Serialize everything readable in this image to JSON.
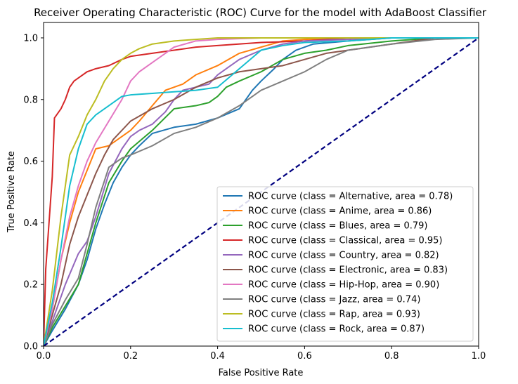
{
  "chart_data": {
    "type": "line",
    "title": "Receiver Operating Characteristic (ROC) Curve for the model with AdaBoost Classifier",
    "xlabel": "False Positive Rate",
    "ylabel": "True Positive Rate",
    "xlim": [
      0.0,
      1.0
    ],
    "ylim": [
      0.0,
      1.05
    ],
    "xticks": [
      "0.0",
      "0.2",
      "0.4",
      "0.6",
      "0.8",
      "1.0"
    ],
    "yticks": [
      "0.0",
      "0.2",
      "0.4",
      "0.6",
      "0.8",
      "1.0"
    ],
    "grid": false,
    "legend_position": "lower-right",
    "diagonal": {
      "x": [
        0,
        1
      ],
      "y": [
        0,
        1
      ],
      "color": "#000080",
      "style": "dashed"
    },
    "series": [
      {
        "name": "ROC curve (class = Alternative, area = 0.78)",
        "color": "#1f77b4",
        "x": [
          0,
          0.02,
          0.05,
          0.08,
          0.1,
          0.12,
          0.14,
          0.16,
          0.18,
          0.2,
          0.22,
          0.25,
          0.3,
          0.35,
          0.4,
          0.45,
          0.48,
          0.5,
          0.53,
          0.55,
          0.58,
          0.62,
          0.7,
          0.8,
          0.9,
          1.0
        ],
        "y": [
          0,
          0.05,
          0.12,
          0.2,
          0.28,
          0.38,
          0.46,
          0.53,
          0.58,
          0.62,
          0.65,
          0.69,
          0.71,
          0.72,
          0.74,
          0.77,
          0.83,
          0.86,
          0.9,
          0.93,
          0.96,
          0.98,
          0.99,
          1.0,
          1.0,
          1.0
        ]
      },
      {
        "name": "ROC curve (class = Anime, area = 0.86)",
        "color": "#ff7f0e",
        "x": [
          0,
          0.02,
          0.04,
          0.06,
          0.08,
          0.1,
          0.12,
          0.15,
          0.18,
          0.2,
          0.22,
          0.25,
          0.28,
          0.3,
          0.32,
          0.35,
          0.4,
          0.45,
          0.5,
          0.55,
          0.6,
          0.7,
          0.8,
          0.9,
          1.0
        ],
        "y": [
          0,
          0.12,
          0.28,
          0.4,
          0.5,
          0.57,
          0.64,
          0.65,
          0.68,
          0.7,
          0.73,
          0.78,
          0.83,
          0.84,
          0.85,
          0.88,
          0.91,
          0.95,
          0.97,
          0.99,
          0.995,
          1.0,
          1.0,
          1.0,
          1.0
        ]
      },
      {
        "name": "ROC curve (class = Blues, area = 0.79)",
        "color": "#2ca02c",
        "x": [
          0,
          0.02,
          0.05,
          0.08,
          0.1,
          0.12,
          0.15,
          0.18,
          0.2,
          0.25,
          0.3,
          0.35,
          0.38,
          0.4,
          0.42,
          0.45,
          0.5,
          0.55,
          0.6,
          0.65,
          0.7,
          0.8,
          0.9,
          1.0
        ],
        "y": [
          0,
          0.06,
          0.13,
          0.2,
          0.3,
          0.4,
          0.53,
          0.6,
          0.64,
          0.7,
          0.77,
          0.78,
          0.79,
          0.81,
          0.84,
          0.86,
          0.89,
          0.93,
          0.95,
          0.96,
          0.975,
          0.99,
          1.0,
          1.0
        ]
      },
      {
        "name": "ROC curve (class = Classical, area = 0.95)",
        "color": "#d62728",
        "x": [
          0,
          0.005,
          0.01,
          0.02,
          0.025,
          0.03,
          0.04,
          0.05,
          0.06,
          0.07,
          0.08,
          0.1,
          0.12,
          0.15,
          0.18,
          0.2,
          0.25,
          0.3,
          0.35,
          0.4,
          0.5,
          0.6,
          0.7,
          0.8,
          0.9,
          1.0
        ],
        "y": [
          0,
          0.25,
          0.35,
          0.55,
          0.74,
          0.75,
          0.77,
          0.8,
          0.84,
          0.86,
          0.87,
          0.89,
          0.9,
          0.91,
          0.93,
          0.94,
          0.95,
          0.96,
          0.97,
          0.975,
          0.985,
          0.99,
          1.0,
          1.0,
          1.0,
          1.0
        ]
      },
      {
        "name": "ROC curve (class = Country, area = 0.82)",
        "color": "#9467bd",
        "x": [
          0,
          0.02,
          0.05,
          0.08,
          0.1,
          0.12,
          0.15,
          0.18,
          0.2,
          0.22,
          0.25,
          0.28,
          0.3,
          0.32,
          0.35,
          0.38,
          0.4,
          0.42,
          0.45,
          0.5,
          0.55,
          0.6,
          0.7,
          0.8,
          0.9,
          1.0
        ],
        "y": [
          0,
          0.08,
          0.2,
          0.3,
          0.34,
          0.42,
          0.56,
          0.64,
          0.68,
          0.7,
          0.72,
          0.76,
          0.8,
          0.83,
          0.84,
          0.85,
          0.88,
          0.9,
          0.93,
          0.96,
          0.98,
          0.99,
          0.995,
          1.0,
          1.0,
          1.0
        ]
      },
      {
        "name": "ROC curve (class = Electronic, area = 0.83)",
        "color": "#8c564b",
        "x": [
          0,
          0.02,
          0.04,
          0.06,
          0.08,
          0.1,
          0.12,
          0.14,
          0.16,
          0.2,
          0.25,
          0.3,
          0.35,
          0.4,
          0.45,
          0.5,
          0.55,
          0.6,
          0.65,
          0.7,
          0.8,
          0.9,
          1.0
        ],
        "y": [
          0,
          0.1,
          0.2,
          0.33,
          0.42,
          0.49,
          0.56,
          0.62,
          0.67,
          0.73,
          0.77,
          0.8,
          0.84,
          0.87,
          0.89,
          0.9,
          0.91,
          0.93,
          0.95,
          0.96,
          0.98,
          1.0,
          1.0
        ]
      },
      {
        "name": "ROC curve (class = Hip-Hop, area = 0.90)",
        "color": "#e377c2",
        "x": [
          0,
          0.02,
          0.04,
          0.06,
          0.08,
          0.1,
          0.12,
          0.15,
          0.18,
          0.2,
          0.22,
          0.25,
          0.28,
          0.3,
          0.35,
          0.4,
          0.5,
          0.6,
          0.7,
          0.8,
          0.9,
          1.0
        ],
        "y": [
          0,
          0.12,
          0.28,
          0.42,
          0.52,
          0.6,
          0.66,
          0.73,
          0.8,
          0.86,
          0.89,
          0.92,
          0.95,
          0.97,
          0.99,
          0.995,
          1.0,
          1.0,
          1.0,
          1.0,
          1.0,
          1.0
        ]
      },
      {
        "name": "ROC curve (class = Jazz, area = 0.74)",
        "color": "#7f7f7f",
        "x": [
          0,
          0.02,
          0.05,
          0.08,
          0.1,
          0.12,
          0.15,
          0.18,
          0.2,
          0.25,
          0.3,
          0.35,
          0.4,
          0.45,
          0.5,
          0.55,
          0.6,
          0.65,
          0.7,
          0.75,
          0.8,
          0.9,
          1.0
        ],
        "y": [
          0,
          0.07,
          0.15,
          0.22,
          0.33,
          0.45,
          0.58,
          0.61,
          0.62,
          0.65,
          0.69,
          0.71,
          0.74,
          0.78,
          0.83,
          0.86,
          0.89,
          0.93,
          0.96,
          0.97,
          0.98,
          0.995,
          1.0
        ]
      },
      {
        "name": "ROC curve (class = Rap, area = 0.93)",
        "color": "#bcbd22",
        "x": [
          0,
          0.02,
          0.04,
          0.06,
          0.08,
          0.1,
          0.12,
          0.14,
          0.16,
          0.18,
          0.2,
          0.22,
          0.25,
          0.3,
          0.35,
          0.4,
          0.5,
          0.6,
          0.7,
          0.8,
          0.9,
          1.0
        ],
        "y": [
          0,
          0.18,
          0.42,
          0.62,
          0.68,
          0.75,
          0.8,
          0.86,
          0.9,
          0.93,
          0.95,
          0.965,
          0.98,
          0.99,
          0.995,
          1.0,
          1.0,
          1.0,
          1.0,
          1.0,
          1.0,
          1.0
        ]
      },
      {
        "name": "ROC curve (class = Rock, area = 0.87)",
        "color": "#17becf",
        "x": [
          0,
          0.02,
          0.04,
          0.06,
          0.08,
          0.1,
          0.12,
          0.15,
          0.18,
          0.2,
          0.25,
          0.3,
          0.35,
          0.4,
          0.45,
          0.5,
          0.55,
          0.6,
          0.7,
          0.8,
          0.9,
          1.0
        ],
        "y": [
          0,
          0.14,
          0.32,
          0.52,
          0.64,
          0.72,
          0.75,
          0.78,
          0.81,
          0.815,
          0.82,
          0.825,
          0.83,
          0.84,
          0.9,
          0.96,
          0.975,
          0.985,
          0.99,
          1.0,
          1.0,
          1.0
        ]
      }
    ]
  }
}
